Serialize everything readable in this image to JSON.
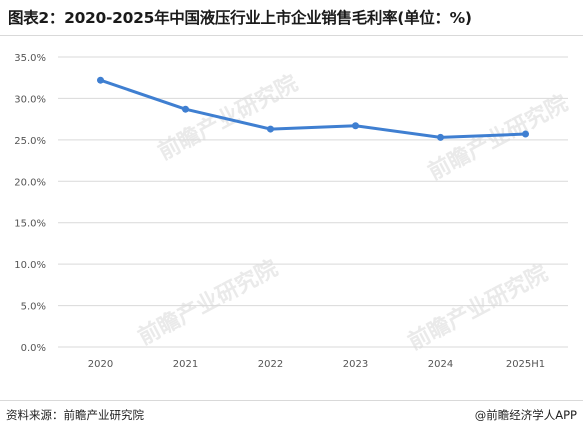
{
  "title": "图表2：2020-2025年中国液压行业上市企业销售毛利率(单位：%)",
  "source": "资料来源：前瞻产业研究院",
  "credit": "@前瞻经济学人APP",
  "watermark": "前瞻产业研究院",
  "colors": {
    "line": "#3f7fd1",
    "grid": "#d9d9d9",
    "axis_text": "#555555"
  },
  "chart_data": {
    "type": "line",
    "title": "图表2：2020-2025年中国液压行业上市企业销售毛利率(单位：%)",
    "xlabel": "",
    "ylabel": "",
    "categories": [
      "2020",
      "2021",
      "2022",
      "2023",
      "2024",
      "2025H1"
    ],
    "series": [
      {
        "values": [
          32.2,
          28.7,
          26.3,
          26.7,
          25.3,
          25.7
        ]
      }
    ],
    "ylim": [
      0,
      35
    ],
    "yticks": [
      "0.0%",
      "5.0%",
      "10.0%",
      "15.0%",
      "20.0%",
      "25.0%",
      "30.0%",
      "35.0%"
    ],
    "grid": true,
    "legend": "none"
  }
}
